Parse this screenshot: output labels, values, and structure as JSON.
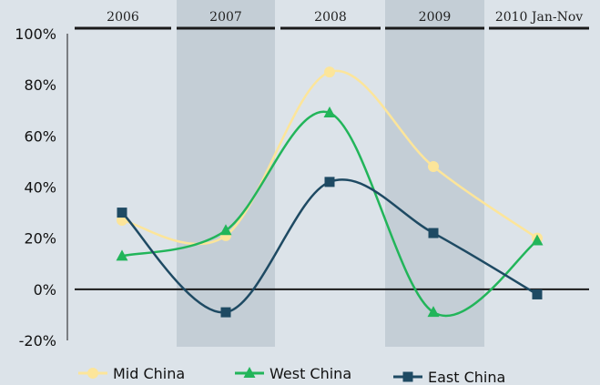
{
  "chart_data": {
    "type": "line",
    "periods": [
      "2006",
      "2007",
      "2008",
      "2009",
      "2010  Jan-Nov"
    ],
    "x": [
      "2006",
      "2007",
      "2008",
      "2009",
      "2010 Jan-Nov"
    ],
    "y_ticks": [
      "100%",
      "80%",
      "60%",
      "40%",
      "20%",
      "0%",
      "-20%"
    ],
    "ylim": [
      -20,
      100
    ],
    "y_unit": "%",
    "shaded_periods": [
      "2007",
      "2009"
    ],
    "series": [
      {
        "name": "Mid China",
        "color": "#fce59a",
        "marker": "circle",
        "values": [
          27,
          21,
          85,
          48,
          20
        ]
      },
      {
        "name": "West China",
        "color": "#22b55a",
        "marker": "triangle",
        "values": [
          13,
          23,
          69,
          -9,
          19
        ]
      },
      {
        "name": "East China",
        "color": "#1e4a63",
        "marker": "square",
        "values": [
          30,
          -9,
          42,
          22,
          -2
        ]
      }
    ],
    "legend_position": "bottom"
  }
}
